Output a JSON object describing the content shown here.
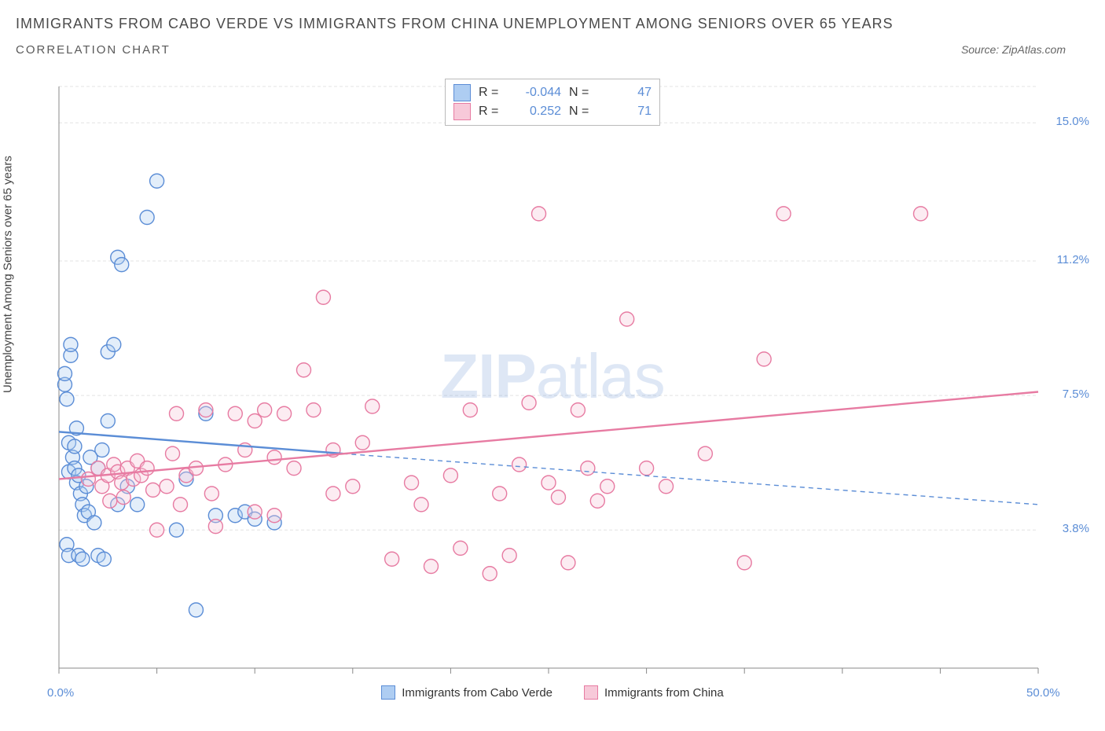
{
  "title": "IMMIGRANTS FROM CABO VERDE VS IMMIGRANTS FROM CHINA UNEMPLOYMENT AMONG SENIORS OVER 65 YEARS",
  "subtitle": "CORRELATION CHART",
  "source": "Source: ZipAtlas.com",
  "ylabel": "Unemployment Among Seniors over 65 years",
  "watermark_bold": "ZIP",
  "watermark_light": "atlas",
  "chart": {
    "type": "scatter",
    "background_color": "#ffffff",
    "grid_color": "#e3e3e3",
    "axis_color": "#888888",
    "tick_color": "#5b8dd6",
    "xlim": [
      0,
      50
    ],
    "ylim": [
      0,
      16
    ],
    "xticks": [
      0,
      5,
      10,
      15,
      20,
      25,
      30,
      35,
      40,
      45,
      50
    ],
    "xticklabels": [
      "0.0%",
      "",
      "",
      "",
      "",
      "",
      "",
      "",
      "",
      "",
      "50.0%"
    ],
    "yticks": [
      3.8,
      7.5,
      11.2,
      15.0
    ],
    "yticklabels": [
      "3.8%",
      "7.5%",
      "11.2%",
      "15.0%"
    ],
    "marker_radius": 9,
    "marker_stroke_width": 1.4,
    "marker_fill_opacity": 0.35,
    "trend_line_width": 2.4
  },
  "series": [
    {
      "name": "Immigrants from Cabo Verde",
      "color": "#5b8dd6",
      "fill": "#aecdf2",
      "r": "-0.044",
      "n": "47",
      "trend": {
        "x1": 0,
        "y1": 6.5,
        "x2": 14.5,
        "y2": 5.9,
        "solid": true
      },
      "trend_ext": {
        "x1": 14.5,
        "y1": 5.9,
        "x2": 50,
        "y2": 4.5,
        "solid": false
      },
      "points": [
        [
          0.3,
          7.8
        ],
        [
          0.3,
          8.1
        ],
        [
          0.4,
          7.4
        ],
        [
          0.5,
          6.2
        ],
        [
          0.6,
          8.6
        ],
        [
          0.6,
          8.9
        ],
        [
          0.5,
          5.4
        ],
        [
          0.7,
          5.8
        ],
        [
          0.8,
          6.1
        ],
        [
          0.8,
          5.5
        ],
        [
          0.9,
          5.1
        ],
        [
          1.0,
          5.3
        ],
        [
          1.1,
          4.8
        ],
        [
          1.2,
          4.5
        ],
        [
          1.3,
          4.2
        ],
        [
          1.4,
          5.0
        ],
        [
          1.5,
          4.3
        ],
        [
          0.4,
          3.4
        ],
        [
          0.5,
          3.1
        ],
        [
          1.0,
          3.1
        ],
        [
          1.2,
          3.0
        ],
        [
          2.0,
          3.1
        ],
        [
          2.3,
          3.0
        ],
        [
          1.8,
          4.0
        ],
        [
          2.0,
          5.5
        ],
        [
          2.2,
          6.0
        ],
        [
          2.5,
          8.7
        ],
        [
          2.8,
          8.9
        ],
        [
          3.0,
          11.3
        ],
        [
          3.2,
          11.1
        ],
        [
          3.0,
          4.5
        ],
        [
          3.5,
          5.0
        ],
        [
          4.0,
          4.5
        ],
        [
          4.5,
          12.4
        ],
        [
          5.0,
          13.4
        ],
        [
          6.0,
          3.8
        ],
        [
          6.5,
          5.2
        ],
        [
          7.5,
          7.0
        ],
        [
          8.0,
          4.2
        ],
        [
          9.0,
          4.2
        ],
        [
          9.5,
          4.3
        ],
        [
          10.0,
          4.1
        ],
        [
          11.0,
          4.0
        ],
        [
          7.0,
          1.6
        ],
        [
          2.5,
          6.8
        ],
        [
          1.6,
          5.8
        ],
        [
          0.9,
          6.6
        ]
      ]
    },
    {
      "name": "Immigrants from China",
      "color": "#e77ba2",
      "fill": "#f7c9d9",
      "r": "0.252",
      "n": "71",
      "trend": {
        "x1": 0,
        "y1": 5.2,
        "x2": 50,
        "y2": 7.6,
        "solid": true
      },
      "points": [
        [
          1.5,
          5.2
        ],
        [
          2.0,
          5.5
        ],
        [
          2.2,
          5.0
        ],
        [
          2.5,
          5.3
        ],
        [
          2.8,
          5.6
        ],
        [
          3.0,
          5.4
        ],
        [
          3.2,
          5.1
        ],
        [
          3.5,
          5.5
        ],
        [
          3.8,
          5.2
        ],
        [
          4.0,
          5.7
        ],
        [
          4.2,
          5.3
        ],
        [
          4.5,
          5.5
        ],
        [
          5.0,
          3.8
        ],
        [
          5.5,
          5.0
        ],
        [
          6.0,
          7.0
        ],
        [
          6.5,
          5.3
        ],
        [
          7.0,
          5.5
        ],
        [
          7.5,
          7.1
        ],
        [
          8.0,
          3.9
        ],
        [
          8.5,
          5.6
        ],
        [
          9.0,
          7.0
        ],
        [
          9.5,
          6.0
        ],
        [
          10.0,
          6.8
        ],
        [
          10.5,
          7.1
        ],
        [
          11.0,
          5.8
        ],
        [
          11.5,
          7.0
        ],
        [
          12.0,
          5.5
        ],
        [
          12.5,
          8.2
        ],
        [
          13.0,
          7.1
        ],
        [
          13.5,
          10.2
        ],
        [
          14.0,
          4.8
        ],
        [
          15.0,
          5.0
        ],
        [
          16.0,
          7.2
        ],
        [
          17.0,
          3.0
        ],
        [
          18.0,
          5.1
        ],
        [
          18.5,
          4.5
        ],
        [
          19.0,
          2.8
        ],
        [
          20.0,
          5.3
        ],
        [
          20.5,
          3.3
        ],
        [
          21.0,
          7.1
        ],
        [
          22.0,
          2.6
        ],
        [
          22.5,
          4.8
        ],
        [
          23.0,
          3.1
        ],
        [
          23.5,
          5.6
        ],
        [
          24.0,
          7.3
        ],
        [
          24.5,
          12.5
        ],
        [
          25.0,
          5.1
        ],
        [
          25.5,
          4.7
        ],
        [
          26.0,
          2.9
        ],
        [
          26.5,
          7.1
        ],
        [
          27.0,
          5.5
        ],
        [
          27.5,
          4.6
        ],
        [
          28.0,
          5.0
        ],
        [
          29.0,
          9.6
        ],
        [
          30.0,
          5.5
        ],
        [
          31.0,
          5.0
        ],
        [
          33.0,
          5.9
        ],
        [
          35.0,
          2.9
        ],
        [
          36.0,
          8.5
        ],
        [
          37.0,
          12.5
        ],
        [
          44.0,
          12.5
        ],
        [
          10.0,
          4.3
        ],
        [
          11.0,
          4.2
        ],
        [
          14.0,
          6.0
        ],
        [
          15.5,
          6.2
        ],
        [
          5.8,
          5.9
        ],
        [
          6.2,
          4.5
        ],
        [
          7.8,
          4.8
        ],
        [
          4.8,
          4.9
        ],
        [
          3.3,
          4.7
        ],
        [
          2.6,
          4.6
        ]
      ]
    }
  ],
  "legend": {
    "r_label": "R =",
    "n_label": "N ="
  }
}
